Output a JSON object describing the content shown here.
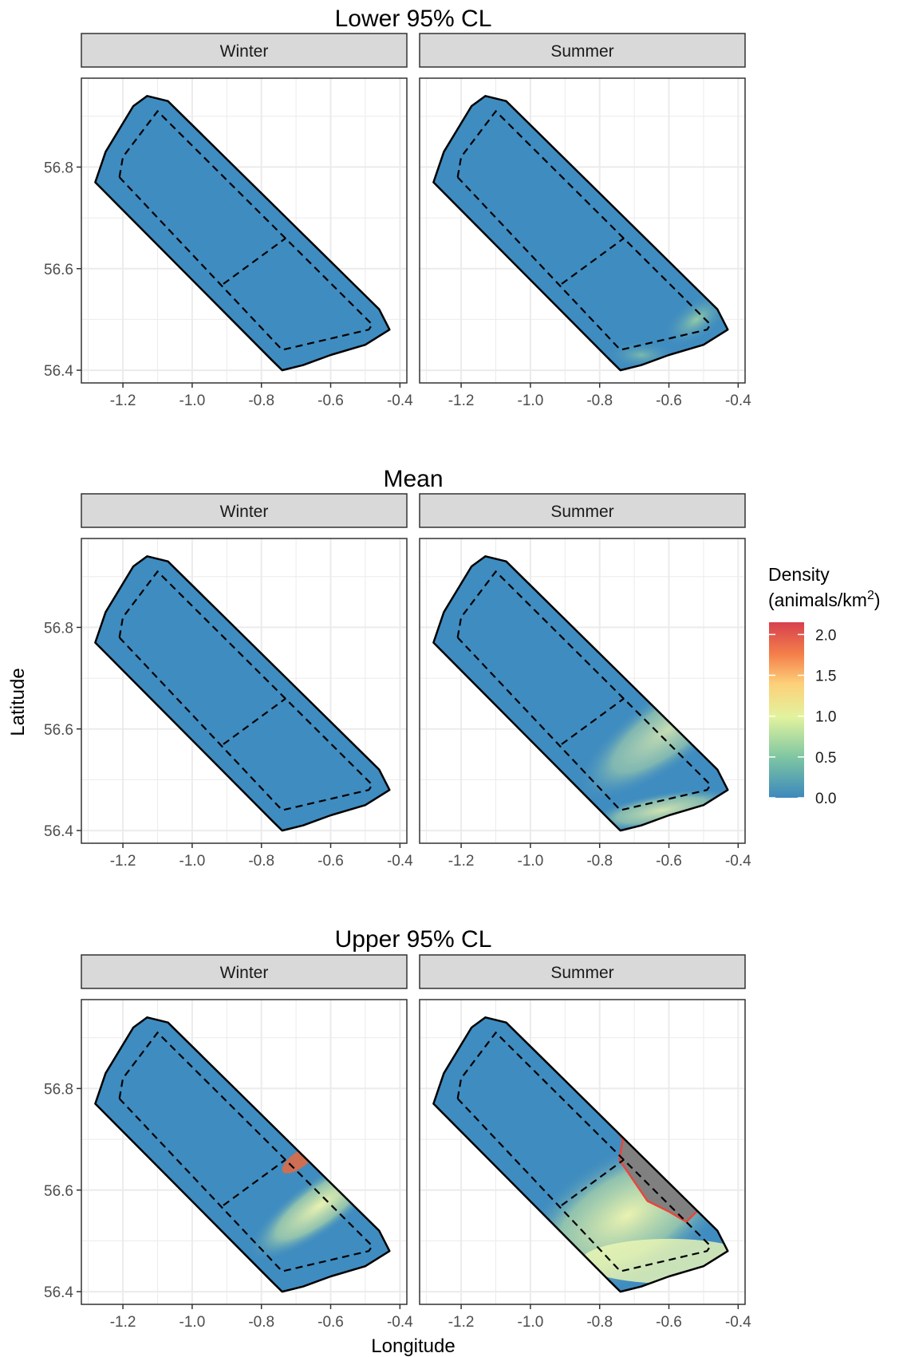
{
  "chart_data": {
    "type": "heatmap",
    "xlabel": "Longitude",
    "ylabel": "Latitude",
    "x_ticks": [
      -1.2,
      -1.0,
      -0.8,
      -0.6,
      -0.4
    ],
    "y_ticks": [
      56.4,
      56.6,
      56.8
    ],
    "xlim": [
      -1.32,
      -0.38
    ],
    "ylim": [
      56.375,
      56.975
    ],
    "grid": true,
    "strips": [
      "Winter",
      "Summer"
    ],
    "rows": [
      {
        "title": "Lower 95% CL",
        "winter_hotspot": "none",
        "summer_hotspot": "slight south-east edge"
      },
      {
        "title": "Mean",
        "winter_hotspot": "none",
        "summer_hotspot": "south-east coast up to ~0.7"
      },
      {
        "title": "Upper 95% CL",
        "winter_hotspot": "north-east edge near -0.7, 56.65 up to ~2.0",
        "summer_hotspot": "broad south-east, exceeds 2.0 (grey) near -0.65, 56.6"
      }
    ],
    "outer_boundary": [
      [
        -1.28,
        56.77
      ],
      [
        -1.25,
        56.83
      ],
      [
        -1.17,
        56.92
      ],
      [
        -1.13,
        56.94
      ],
      [
        -1.07,
        56.93
      ],
      [
        -0.46,
        56.52
      ],
      [
        -0.43,
        56.48
      ],
      [
        -0.5,
        56.45
      ],
      [
        -0.6,
        56.43
      ],
      [
        -0.68,
        56.41
      ],
      [
        -0.74,
        56.4
      ],
      [
        -0.77,
        56.42
      ]
    ],
    "inner_boundary_dashed": [
      [
        -1.21,
        56.78
      ],
      [
        -1.2,
        56.82
      ],
      [
        -1.1,
        56.91
      ],
      [
        -0.48,
        56.49
      ],
      [
        -0.49,
        56.48
      ],
      [
        -0.74,
        56.44
      ],
      [
        -1.21,
        56.78
      ]
    ],
    "divider_dashed": [
      [
        -0.91,
        56.57
      ],
      [
        -0.73,
        56.66
      ]
    ],
    "legend": {
      "title_line1": "Density",
      "title_line2_prefix": "(animals/km",
      "title_line2_sup": "2",
      "title_line2_suffix": ")",
      "ticks": [
        "0.0",
        "0.5",
        "1.0",
        "1.5",
        "2.0"
      ],
      "tick_values": [
        0.0,
        0.5,
        1.0,
        1.5,
        2.0
      ],
      "range": [
        0,
        2.15
      ],
      "colors": [
        "#3c88bd",
        "#7ec6a2",
        "#e2f39e",
        "#fdd079",
        "#f47e4a",
        "#d6404e"
      ],
      "na_color": "#808080"
    }
  },
  "colors": {
    "base_fill": "#3f8cc0",
    "panel_border": "#333333",
    "strip_fill": "#d9d9d9",
    "grid": "#ebebeb"
  }
}
